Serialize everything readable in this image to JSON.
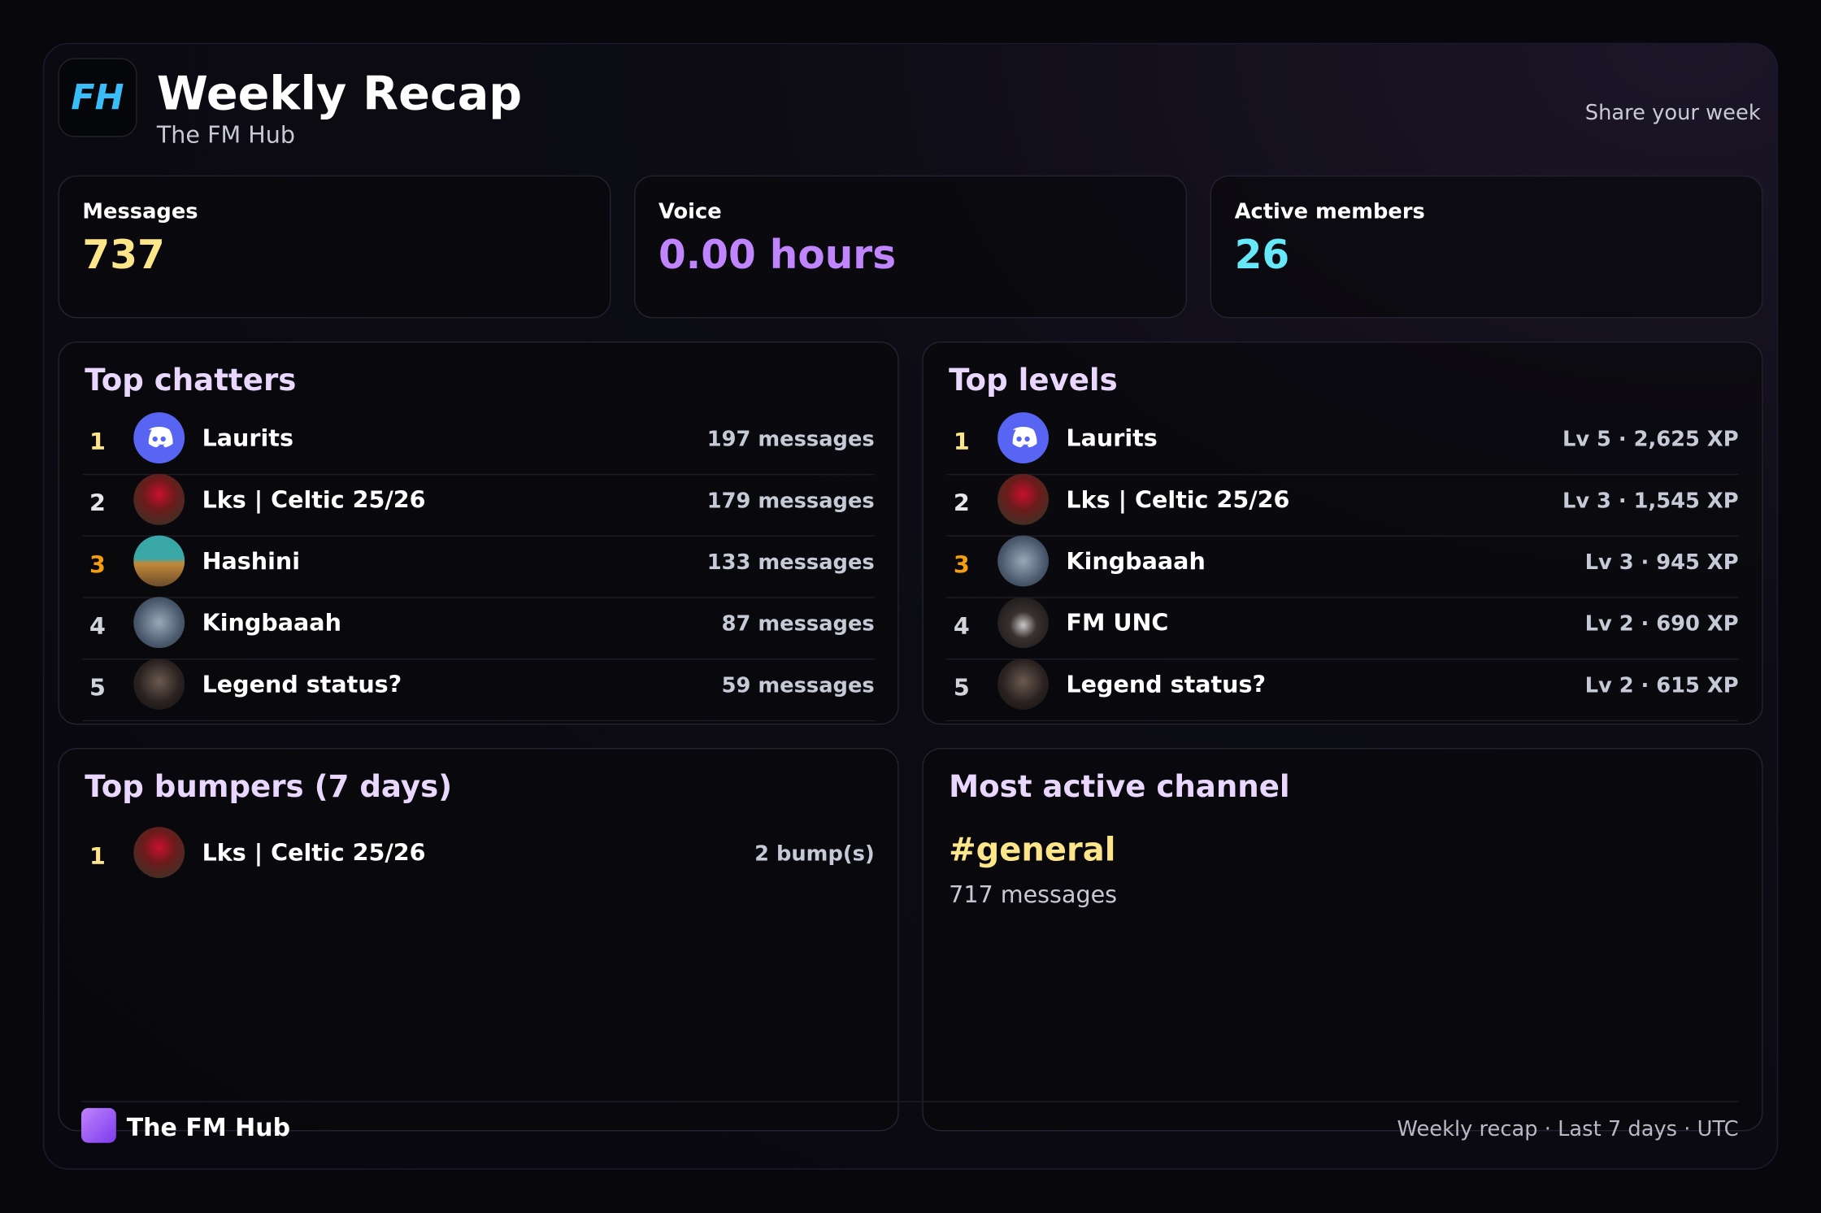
{
  "header": {
    "logo": "FH",
    "title": "Weekly Recap",
    "subtitle": "The FM Hub",
    "action": "Share your week"
  },
  "stats": [
    {
      "label": "Messages",
      "value": "737"
    },
    {
      "label": "Voice",
      "value": "0.00 hours"
    },
    {
      "label": "Active members",
      "value": "26"
    }
  ],
  "top_chatters": {
    "title": "Top chatters",
    "rows": [
      {
        "rank": 1,
        "name": "Laurits",
        "stat": "197 messages"
      },
      {
        "rank": 2,
        "name": "Lks | Celtic 25/26",
        "stat": "179 messages"
      },
      {
        "rank": 3,
        "name": "Hashini",
        "stat": "133 messages"
      },
      {
        "rank": 4,
        "name": "Kingbaaah",
        "stat": "87 messages"
      },
      {
        "rank": 5,
        "name": "Legend status?",
        "stat": "59 messages"
      }
    ]
  },
  "top_levels": {
    "title": "Top levels",
    "rows": [
      {
        "rank": 1,
        "name": "Laurits",
        "stat": "Lv 5 · 2,625 XP"
      },
      {
        "rank": 2,
        "name": "Lks | Celtic 25/26",
        "stat": "Lv 3 · 1,545 XP"
      },
      {
        "rank": 3,
        "name": "Kingbaaah",
        "stat": "Lv 3 · 945 XP"
      },
      {
        "rank": 4,
        "name": "FM UNC",
        "stat": "Lv 2 · 690 XP"
      },
      {
        "rank": 5,
        "name": "Legend status?",
        "stat": "Lv 2 · 615 XP"
      }
    ]
  },
  "top_bumpers": {
    "title": "Top bumpers (7 days)",
    "rows": [
      {
        "rank": 1,
        "name": "Lks | Celtic 25/26",
        "stat": "2 bump(s)"
      }
    ]
  },
  "most_active_channel": {
    "title": "Most active channel",
    "channel": "#general",
    "stat": "717 messages"
  },
  "footer": {
    "brand": "The FM Hub",
    "note": "Weekly recap · Last 7 days · UTC"
  }
}
